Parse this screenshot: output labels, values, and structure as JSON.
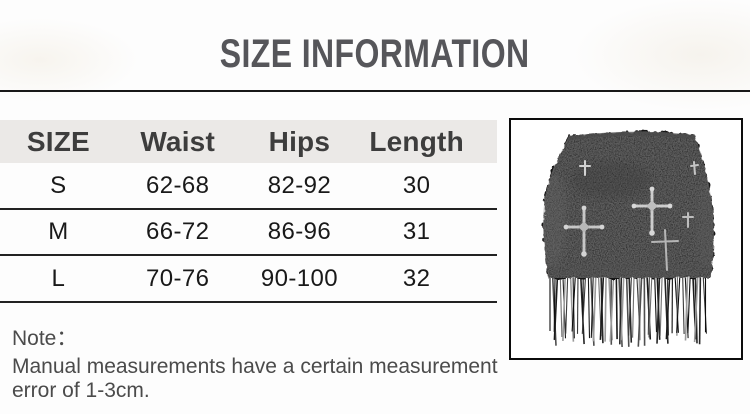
{
  "title": "SIZE INFORMATION",
  "table": {
    "headers": [
      "SIZE",
      "Waist",
      "Hips",
      "Length"
    ],
    "rows": [
      {
        "size": "S",
        "waist": "62-68",
        "hips": "82-92",
        "length": "30"
      },
      {
        "size": "M",
        "waist": "66-72",
        "hips": "86-96",
        "length": "31"
      },
      {
        "size": "L",
        "waist": "70-76",
        "hips": "90-100",
        "length": "32"
      }
    ]
  },
  "note": {
    "label": "Note：",
    "lines": [
      "Manual measurements have a certain measurement",
      "error of 1-3cm."
    ]
  },
  "product_image": {
    "description": "black fuzzy mini skirt with silver cross ornaments and fringe hem"
  },
  "colors": {
    "header_bg": "#ebe9e7",
    "title_text": "#56565a",
    "table_text": "#191919",
    "header_text": "#3d3d3d",
    "note_text": "#4b4b4b",
    "rule_line": "#1f1f1f",
    "ornament_silver": "#c9c9c9"
  }
}
